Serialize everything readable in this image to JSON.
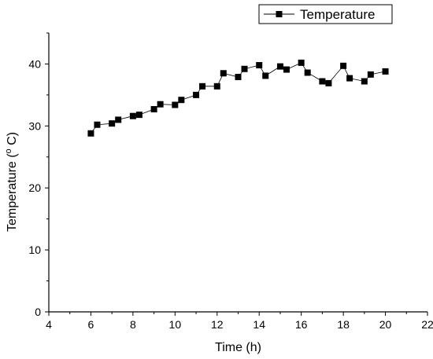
{
  "chart_data": {
    "type": "line",
    "xlabel": "Time (h)",
    "ylabel": "Temperature (o C)",
    "xlim": [
      4,
      22
    ],
    "ylim": [
      0,
      45
    ],
    "xticks": [
      4,
      6,
      8,
      10,
      12,
      14,
      16,
      18,
      20,
      22
    ],
    "yticks": [
      0,
      10,
      20,
      30,
      40
    ],
    "grid": false,
    "legend": "top-right",
    "marker": "square",
    "series": [
      {
        "name": "Temperature",
        "color": "#000000",
        "x": [
          6.0,
          6.3,
          7.0,
          7.3,
          8.0,
          8.3,
          9.0,
          9.3,
          10.0,
          10.3,
          11.0,
          11.3,
          12.0,
          12.3,
          13.0,
          13.3,
          14.0,
          14.3,
          15.0,
          15.3,
          16.0,
          16.3,
          17.0,
          17.3,
          18.0,
          18.3,
          19.0,
          19.3,
          20.0
        ],
        "y": [
          28.8,
          30.2,
          30.4,
          31.0,
          31.6,
          31.8,
          32.7,
          33.5,
          33.4,
          34.2,
          35.0,
          36.4,
          36.4,
          38.5,
          37.9,
          39.2,
          39.8,
          38.1,
          39.6,
          39.1,
          40.2,
          38.6,
          37.2,
          36.9,
          39.7,
          37.7,
          37.2,
          38.3,
          38.8
        ]
      }
    ]
  }
}
